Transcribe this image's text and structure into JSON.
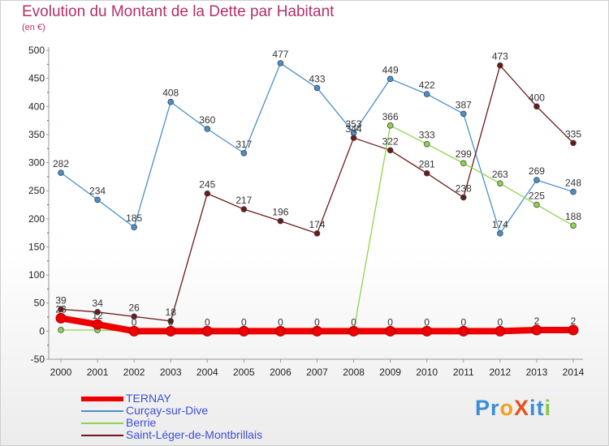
{
  "header": {
    "title": "Evolution du Montant de la Dette par Habitant",
    "subtitle": "(en €)"
  },
  "logo": {
    "text": "ProXiti",
    "letters": [
      {
        "ch": "P",
        "color": "#3b8fd6"
      },
      {
        "ch": "r",
        "color": "#3b8fd6"
      },
      {
        "ch": "o",
        "color": "#f0a020"
      },
      {
        "ch": "X",
        "color": "#e8501c"
      },
      {
        "ch": "i",
        "color": "#3b8fd6"
      },
      {
        "ch": "t",
        "color": "#3b8fd6"
      },
      {
        "ch": "i",
        "color": "#8cc63f"
      }
    ]
  },
  "chart_data": {
    "type": "line",
    "title": "Evolution du Montant de la Dette par Habitant",
    "subtitle": "(en €)",
    "xlabel": "",
    "ylabel": "",
    "x": [
      "2000",
      "2001",
      "2002",
      "2003",
      "2004",
      "2005",
      "2006",
      "2007",
      "2008",
      "2009",
      "2010",
      "2011",
      "2012",
      "2013",
      "2014"
    ],
    "ylim": [
      -50,
      500
    ],
    "yticks": [
      -50,
      0,
      50,
      100,
      150,
      200,
      250,
      300,
      350,
      400,
      450,
      500
    ],
    "grid": false,
    "legend_position": "bottom-left",
    "series": [
      {
        "name": "TERNAY",
        "color": "#ee0000",
        "values": [
          23,
          12,
          0,
          0,
          0,
          0,
          0,
          0,
          0,
          0,
          0,
          0,
          0,
          2,
          2
        ]
      },
      {
        "name": "Curçay-sur-Dive",
        "color": "#4a8fcb",
        "values": [
          282,
          234,
          185,
          408,
          360,
          317,
          477,
          433,
          353,
          449,
          422,
          387,
          174,
          269,
          248
        ]
      },
      {
        "name": "Berrie",
        "color": "#8fd44e",
        "values": [
          2,
          2,
          0,
          0,
          0,
          0,
          0,
          0,
          0,
          366,
          333,
          299,
          263,
          225,
          188
        ]
      },
      {
        "name": "Saint-Léger-de-Montbrillais",
        "color": "#6b1a1a",
        "values": [
          39,
          34,
          26,
          18,
          245,
          217,
          196,
          174,
          344,
          322,
          281,
          238,
          473,
          400,
          335
        ]
      }
    ]
  }
}
